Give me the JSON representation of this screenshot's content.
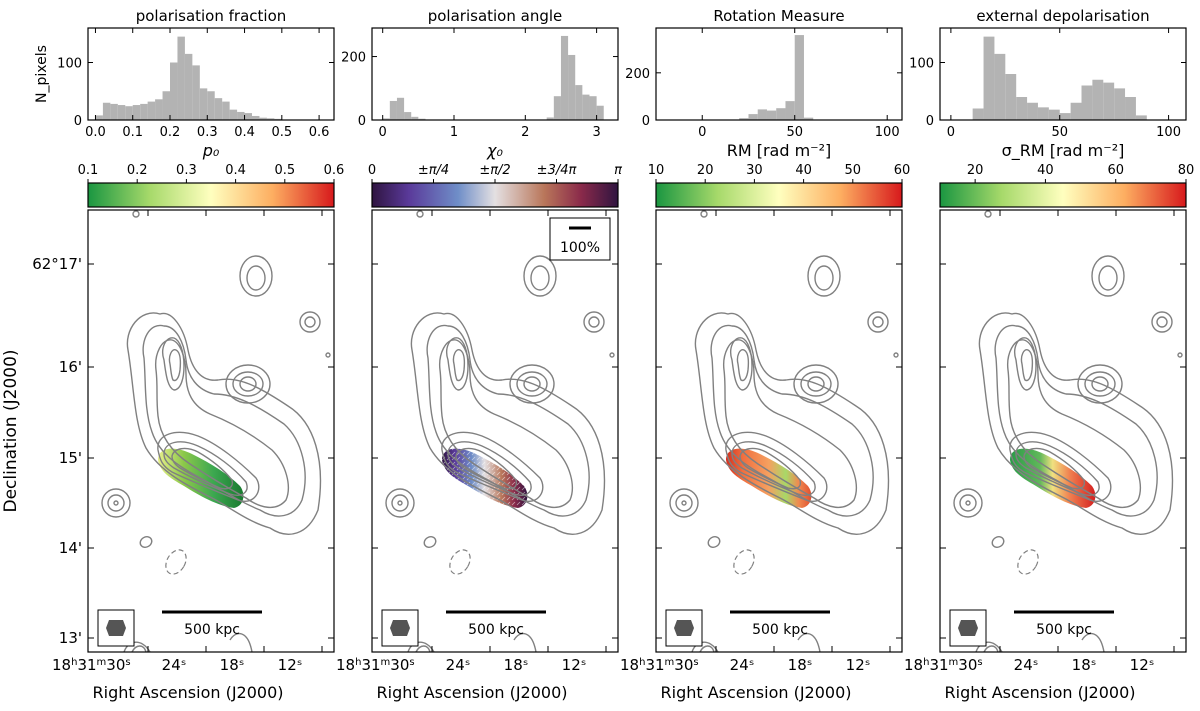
{
  "chart_data": [
    {
      "type": "bar",
      "title": "polarisation fraction",
      "xlabel": "p₀",
      "ylabel": "N_pixels",
      "xlim": [
        -0.02,
        0.64
      ],
      "ylim": [
        0,
        160
      ],
      "xticks": [
        0.0,
        0.1,
        0.2,
        0.3,
        0.4,
        0.5,
        0.6
      ],
      "xtick_labels": [
        "0.0",
        "0.1",
        "0.2",
        "0.3",
        "0.4",
        "0.5",
        "0.6"
      ],
      "yticks": [
        0,
        100
      ],
      "ytick_labels": [
        "0",
        "100"
      ],
      "bins": [
        {
          "x0": 0.0,
          "x1": 0.02,
          "v": 8
        },
        {
          "x0": 0.02,
          "x1": 0.04,
          "v": 30
        },
        {
          "x0": 0.04,
          "x1": 0.06,
          "v": 28
        },
        {
          "x0": 0.06,
          "x1": 0.08,
          "v": 26
        },
        {
          "x0": 0.08,
          "x1": 0.1,
          "v": 24
        },
        {
          "x0": 0.1,
          "x1": 0.12,
          "v": 26
        },
        {
          "x0": 0.12,
          "x1": 0.14,
          "v": 28
        },
        {
          "x0": 0.14,
          "x1": 0.16,
          "v": 32
        },
        {
          "x0": 0.16,
          "x1": 0.18,
          "v": 36
        },
        {
          "x0": 0.18,
          "x1": 0.2,
          "v": 50
        },
        {
          "x0": 0.2,
          "x1": 0.22,
          "v": 100
        },
        {
          "x0": 0.22,
          "x1": 0.24,
          "v": 145
        },
        {
          "x0": 0.24,
          "x1": 0.26,
          "v": 115
        },
        {
          "x0": 0.26,
          "x1": 0.28,
          "v": 95
        },
        {
          "x0": 0.28,
          "x1": 0.3,
          "v": 55
        },
        {
          "x0": 0.3,
          "x1": 0.32,
          "v": 50
        },
        {
          "x0": 0.32,
          "x1": 0.34,
          "v": 38
        },
        {
          "x0": 0.34,
          "x1": 0.36,
          "v": 32
        },
        {
          "x0": 0.36,
          "x1": 0.38,
          "v": 18
        },
        {
          "x0": 0.38,
          "x1": 0.4,
          "v": 14
        },
        {
          "x0": 0.4,
          "x1": 0.42,
          "v": 12
        },
        {
          "x0": 0.42,
          "x1": 0.44,
          "v": 7
        },
        {
          "x0": 0.44,
          "x1": 0.46,
          "v": 4
        },
        {
          "x0": 0.46,
          "x1": 0.48,
          "v": 3
        },
        {
          "x0": 0.48,
          "x1": 0.5,
          "v": 2
        }
      ]
    },
    {
      "type": "bar",
      "title": "polarisation angle",
      "xlabel": "χ₀",
      "xlim": [
        -0.15,
        3.3
      ],
      "ylim": [
        0,
        290
      ],
      "xticks": [
        0,
        1,
        2,
        3
      ],
      "xtick_labels": [
        "0",
        "1",
        "2",
        "3"
      ],
      "yticks": [
        0,
        200
      ],
      "ytick_labels": [
        "0",
        "200"
      ],
      "bins": [
        {
          "x0": 0.0,
          "x1": 0.1,
          "v": 5
        },
        {
          "x0": 0.1,
          "x1": 0.2,
          "v": 60
        },
        {
          "x0": 0.2,
          "x1": 0.3,
          "v": 70
        },
        {
          "x0": 0.3,
          "x1": 0.4,
          "v": 25
        },
        {
          "x0": 0.4,
          "x1": 0.5,
          "v": 10
        },
        {
          "x0": 0.5,
          "x1": 0.6,
          "v": 4
        },
        {
          "x0": 2.3,
          "x1": 2.4,
          "v": 8
        },
        {
          "x0": 2.4,
          "x1": 2.5,
          "v": 75
        },
        {
          "x0": 2.5,
          "x1": 2.6,
          "v": 265
        },
        {
          "x0": 2.6,
          "x1": 2.7,
          "v": 205
        },
        {
          "x0": 2.7,
          "x1": 2.8,
          "v": 110
        },
        {
          "x0": 2.8,
          "x1": 2.9,
          "v": 80
        },
        {
          "x0": 2.9,
          "x1": 3.0,
          "v": 75
        },
        {
          "x0": 3.0,
          "x1": 3.1,
          "v": 45
        }
      ]
    },
    {
      "type": "bar",
      "title": "Rotation Measure",
      "xlabel": "RM [rad m⁻²]",
      "xlim": [
        -25,
        108
      ],
      "ylim": [
        0,
        390
      ],
      "xticks": [
        0,
        50,
        100
      ],
      "xtick_labels": [
        "0",
        "50",
        "100"
      ],
      "yticks": [
        0,
        200
      ],
      "ytick_labels": [
        "0",
        "200"
      ],
      "bins": [
        {
          "x0": 20,
          "x1": 25,
          "v": 8
        },
        {
          "x0": 25,
          "x1": 30,
          "v": 25
        },
        {
          "x0": 30,
          "x1": 35,
          "v": 45
        },
        {
          "x0": 35,
          "x1": 40,
          "v": 40
        },
        {
          "x0": 40,
          "x1": 45,
          "v": 50
        },
        {
          "x0": 45,
          "x1": 50,
          "v": 80
        },
        {
          "x0": 50,
          "x1": 55,
          "v": 360
        },
        {
          "x0": 55,
          "x1": 60,
          "v": 10
        }
      ]
    },
    {
      "type": "bar",
      "title": "external depolarisation",
      "xlabel": "σ_RM [rad m⁻²]",
      "xlim": [
        -5,
        108
      ],
      "ylim": [
        0,
        160
      ],
      "xticks": [
        0,
        50,
        100
      ],
      "xtick_labels": [
        "0",
        "50",
        "100"
      ],
      "yticks": [
        0,
        100
      ],
      "ytick_labels": [
        "0",
        "100"
      ],
      "bins": [
        {
          "x0": 10,
          "x1": 15,
          "v": 20
        },
        {
          "x0": 15,
          "x1": 20,
          "v": 145
        },
        {
          "x0": 20,
          "x1": 25,
          "v": 115
        },
        {
          "x0": 25,
          "x1": 30,
          "v": 80
        },
        {
          "x0": 30,
          "x1": 35,
          "v": 40
        },
        {
          "x0": 35,
          "x1": 40,
          "v": 30
        },
        {
          "x0": 40,
          "x1": 45,
          "v": 22
        },
        {
          "x0": 45,
          "x1": 50,
          "v": 18
        },
        {
          "x0": 50,
          "x1": 55,
          "v": 12
        },
        {
          "x0": 55,
          "x1": 60,
          "v": 30
        },
        {
          "x0": 60,
          "x1": 65,
          "v": 60
        },
        {
          "x0": 65,
          "x1": 70,
          "v": 70
        },
        {
          "x0": 70,
          "x1": 75,
          "v": 65
        },
        {
          "x0": 75,
          "x1": 80,
          "v": 55
        },
        {
          "x0": 80,
          "x1": 85,
          "v": 40
        },
        {
          "x0": 85,
          "x1": 90,
          "v": 8
        }
      ]
    }
  ],
  "colorbars": [
    {
      "ticks": [
        {
          "v": 0.1,
          "label": "0.1"
        },
        {
          "v": 0.2,
          "label": "0.2"
        },
        {
          "v": 0.3,
          "label": "0.3"
        },
        {
          "v": 0.4,
          "label": "0.4"
        },
        {
          "v": 0.5,
          "label": "0.5"
        },
        {
          "v": 0.6,
          "label": "0.6"
        }
      ],
      "min": 0.1,
      "max": 0.6,
      "cmap": "green-red"
    },
    {
      "ticks": [
        {
          "v": 0,
          "label": "0"
        },
        {
          "v": 0.25,
          "label": "±π/4"
        },
        {
          "v": 0.5,
          "label": "±π/2"
        },
        {
          "v": 0.75,
          "label": "±3/4π"
        },
        {
          "v": 1,
          "label": "π"
        }
      ],
      "min": 0,
      "max": 1,
      "cmap": "twilight"
    },
    {
      "ticks": [
        {
          "v": 10,
          "label": "10"
        },
        {
          "v": 20,
          "label": "20"
        },
        {
          "v": 30,
          "label": "30"
        },
        {
          "v": 40,
          "label": "40"
        },
        {
          "v": 50,
          "label": "50"
        },
        {
          "v": 60,
          "label": "60"
        }
      ],
      "min": 10,
      "max": 60,
      "cmap": "green-red"
    },
    {
      "ticks": [
        {
          "v": 20,
          "label": "20"
        },
        {
          "v": 40,
          "label": "40"
        },
        {
          "v": 60,
          "label": "60"
        },
        {
          "v": 80,
          "label": "80"
        }
      ],
      "min": 10,
      "max": 80,
      "cmap": "green-red"
    }
  ],
  "map_axes": {
    "ylabel": "Declination (J2000)",
    "xlabel": "Right Ascension (J2000)",
    "dec_ticks": [
      "62°17'",
      "16'",
      "15'",
      "14'",
      "13'"
    ],
    "ra_ticks": [
      "24ˢ",
      "18ˢ",
      "12ˢ"
    ],
    "ra_origin": {
      "h": "18",
      "h_sup": "h",
      "m": "31",
      "m_sup": "m",
      "s": "30",
      "s_sup": "s"
    },
    "scalebar_label": "500 kpc",
    "vector_legend": "100%"
  },
  "colors": {
    "hist": "#b3b3b3",
    "contour": "#808080"
  }
}
